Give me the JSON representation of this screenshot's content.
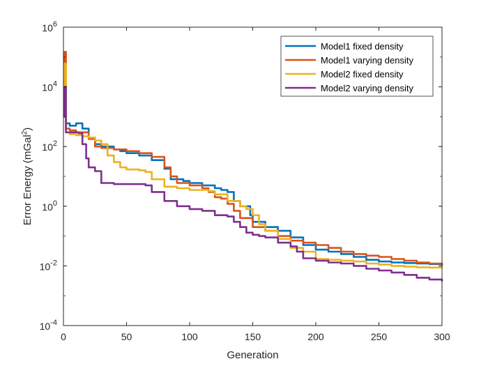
{
  "chart_data": {
    "type": "line",
    "title": "",
    "xlabel": "Generation",
    "ylabel_text": "Error Energy (mGal",
    "ylabel_sup": "2",
    "ylabel_close": ")",
    "yscale": "log",
    "xlim": [
      0,
      300
    ],
    "ylim_exp": [
      -4,
      6
    ],
    "x_ticks": [
      0,
      50,
      100,
      150,
      200,
      250,
      300
    ],
    "x_tick_labels": [
      "0",
      "50",
      "100",
      "150",
      "200",
      "250",
      "300"
    ],
    "y_tick_exponents": [
      -4,
      -2,
      0,
      2,
      4,
      6
    ],
    "y_tick_base": "10",
    "y_tick_exp_labels": [
      "-4",
      "-2",
      "0",
      "2",
      "4",
      "6"
    ],
    "grid": false,
    "legend_position": "top-right",
    "series": [
      {
        "name": "Model1 fixed density",
        "color": "#0072BD",
        "points": [
          [
            0,
            3000.0
          ],
          [
            1,
            9000.0
          ],
          [
            2,
            600.0
          ],
          [
            5,
            500.0
          ],
          [
            10,
            600.0
          ],
          [
            15,
            400.0
          ],
          [
            20,
            200.0
          ],
          [
            25,
            120.0
          ],
          [
            30,
            100.0
          ],
          [
            40,
            80.0
          ],
          [
            45,
            70.0
          ],
          [
            50,
            60.0
          ],
          [
            60,
            50.0
          ],
          [
            70,
            35.0
          ],
          [
            80,
            18.0
          ],
          [
            85,
            8
          ],
          [
            95,
            7
          ],
          [
            100,
            6
          ],
          [
            110,
            5
          ],
          [
            120,
            4
          ],
          [
            125,
            3.5
          ],
          [
            130,
            3.0
          ],
          [
            135,
            1.5
          ],
          [
            140,
            1.0
          ],
          [
            148,
            0.5
          ],
          [
            150,
            0.3
          ],
          [
            160,
            0.2
          ],
          [
            170,
            0.15
          ],
          [
            180,
            0.09
          ],
          [
            190,
            0.05
          ],
          [
            200,
            0.035
          ],
          [
            210,
            0.03
          ],
          [
            220,
            0.025
          ],
          [
            230,
            0.02
          ],
          [
            240,
            0.016
          ],
          [
            250,
            0.014
          ],
          [
            260,
            0.013
          ],
          [
            270,
            0.0125
          ],
          [
            280,
            0.012
          ],
          [
            290,
            0.0115
          ],
          [
            300,
            0.011
          ]
        ]
      },
      {
        "name": "Model1 varying density",
        "color": "#D95319",
        "points": [
          [
            0,
            5000.0
          ],
          [
            1,
            150000.0
          ],
          [
            2,
            400.0
          ],
          [
            5,
            350.0
          ],
          [
            10,
            300.0
          ],
          [
            15,
            300.0
          ],
          [
            20,
            180.0
          ],
          [
            25,
            100.0
          ],
          [
            30,
            90.0
          ],
          [
            40,
            80.0
          ],
          [
            50,
            70.0
          ],
          [
            60,
            60.0
          ],
          [
            70,
            45.0
          ],
          [
            80,
            20.0
          ],
          [
            85,
            10.0
          ],
          [
            90,
            6
          ],
          [
            100,
            5
          ],
          [
            110,
            4
          ],
          [
            115,
            3
          ],
          [
            120,
            2.0
          ],
          [
            125,
            1.8
          ],
          [
            130,
            1.2
          ],
          [
            135,
            0.7
          ],
          [
            140,
            0.4
          ],
          [
            150,
            0.2
          ],
          [
            160,
            0.15
          ],
          [
            170,
            0.1
          ],
          [
            180,
            0.07
          ],
          [
            190,
            0.06
          ],
          [
            200,
            0.05
          ],
          [
            210,
            0.04
          ],
          [
            220,
            0.03
          ],
          [
            230,
            0.025
          ],
          [
            240,
            0.022
          ],
          [
            250,
            0.02
          ],
          [
            260,
            0.017
          ],
          [
            270,
            0.015
          ],
          [
            280,
            0.013
          ],
          [
            290,
            0.012
          ],
          [
            300,
            0.01
          ]
        ]
      },
      {
        "name": "Model2 fixed density",
        "color": "#EDB120",
        "points": [
          [
            0,
            2000.0
          ],
          [
            1,
            60000.0
          ],
          [
            2,
            300.0
          ],
          [
            5,
            260.0
          ],
          [
            10,
            240.0
          ],
          [
            15,
            220.0
          ],
          [
            20,
            200.0
          ],
          [
            25,
            160.0
          ],
          [
            30,
            120.0
          ],
          [
            35,
            50.0
          ],
          [
            40,
            30.0
          ],
          [
            45,
            20.0
          ],
          [
            50,
            17.0
          ],
          [
            60,
            16.0
          ],
          [
            65,
            14.0
          ],
          [
            70,
            8
          ],
          [
            80,
            4.5
          ],
          [
            90,
            4
          ],
          [
            100,
            3.5
          ],
          [
            110,
            3.5
          ],
          [
            115,
            3.2
          ],
          [
            120,
            2.5
          ],
          [
            130,
            1.5
          ],
          [
            140,
            1.0
          ],
          [
            145,
            0.8
          ],
          [
            150,
            0.5
          ],
          [
            155,
            0.25
          ],
          [
            160,
            0.15
          ],
          [
            170,
            0.08
          ],
          [
            180,
            0.04
          ],
          [
            190,
            0.03
          ],
          [
            200,
            0.017
          ],
          [
            210,
            0.016
          ],
          [
            220,
            0.015
          ],
          [
            230,
            0.014
          ],
          [
            240,
            0.012
          ],
          [
            250,
            0.011
          ],
          [
            260,
            0.01
          ],
          [
            270,
            0.0095
          ],
          [
            280,
            0.009
          ],
          [
            290,
            0.0088
          ],
          [
            300,
            0.0085
          ]
        ]
      },
      {
        "name": "Model2 varying density",
        "color": "#7E2F8E",
        "points": [
          [
            0,
            1000.0
          ],
          [
            1,
            10000.0
          ],
          [
            2,
            300.0
          ],
          [
            5,
            300.0
          ],
          [
            10,
            300.0
          ],
          [
            12,
            280.0
          ],
          [
            15,
            120.0
          ],
          [
            18,
            40.0
          ],
          [
            20,
            20.0
          ],
          [
            25,
            15.0
          ],
          [
            30,
            6
          ],
          [
            40,
            5.5
          ],
          [
            50,
            5.5
          ],
          [
            60,
            5.5
          ],
          [
            65,
            5
          ],
          [
            70,
            3.0
          ],
          [
            80,
            1.5
          ],
          [
            90,
            1.0
          ],
          [
            100,
            0.8
          ],
          [
            110,
            0.7
          ],
          [
            120,
            0.5
          ],
          [
            130,
            0.45
          ],
          [
            135,
            0.3
          ],
          [
            140,
            0.2
          ],
          [
            145,
            0.13
          ],
          [
            150,
            0.11
          ],
          [
            155,
            0.1
          ],
          [
            160,
            0.09
          ],
          [
            170,
            0.06
          ],
          [
            180,
            0.045
          ],
          [
            185,
            0.03
          ],
          [
            190,
            0.018
          ],
          [
            200,
            0.015
          ],
          [
            210,
            0.013
          ],
          [
            220,
            0.012
          ],
          [
            230,
            0.01
          ],
          [
            240,
            0.008
          ],
          [
            250,
            0.007
          ],
          [
            260,
            0.006
          ],
          [
            270,
            0.005
          ],
          [
            280,
            0.004
          ],
          [
            290,
            0.0035
          ],
          [
            300,
            0.003
          ]
        ]
      }
    ]
  }
}
